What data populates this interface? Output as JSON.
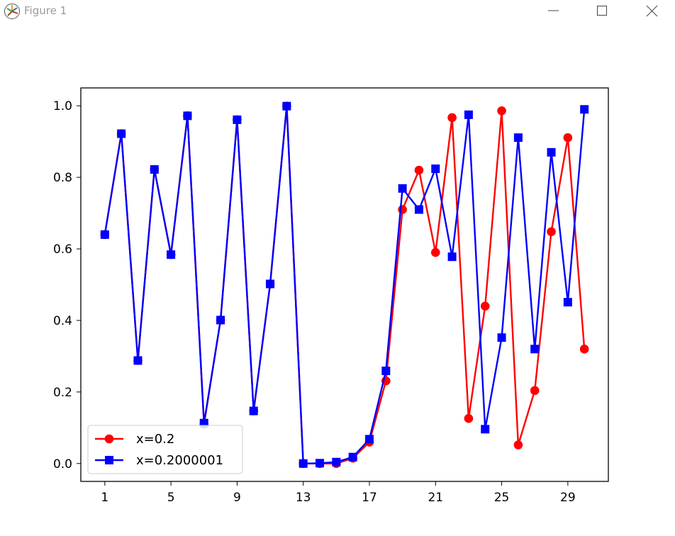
{
  "window": {
    "title": "Figure 1",
    "icons": {
      "app": "matplotlib-icon",
      "minimize": "minimize-icon",
      "maximize": "maximize-icon",
      "close": "close-icon"
    }
  },
  "chart_data": {
    "type": "line",
    "x": [
      1,
      2,
      3,
      4,
      5,
      6,
      7,
      8,
      9,
      10,
      11,
      12,
      13,
      14,
      15,
      16,
      17,
      18,
      19,
      20,
      21,
      22,
      23,
      24,
      25,
      26,
      27,
      28,
      29,
      30
    ],
    "xticks": [
      1,
      5,
      9,
      13,
      17,
      21,
      25,
      29
    ],
    "xticklabels": [
      "1",
      "5",
      "9",
      "13",
      "17",
      "21",
      "25",
      "29"
    ],
    "yticks": [
      0.0,
      0.2,
      0.4,
      0.6,
      0.8,
      1.0
    ],
    "yticklabels": [
      "0.0",
      "0.2",
      "0.4",
      "0.6",
      "0.8",
      "1.0"
    ],
    "xlim": [
      -0.45,
      31.45
    ],
    "ylim": [
      -0.05,
      1.05
    ],
    "grid": false,
    "legend_position": "lower-left",
    "series": [
      {
        "name": "x=0.2",
        "color": "#ff0000",
        "marker": "circle",
        "values": [
          0.64,
          0.922,
          0.288,
          0.822,
          0.584,
          0.972,
          0.11,
          0.401,
          0.961,
          0.147,
          0.502,
          0.999,
          0.0,
          0.0,
          0.0,
          0.015,
          0.06,
          0.231,
          0.71,
          0.82,
          0.59,
          0.967,
          0.126,
          0.44,
          0.986,
          0.052,
          0.204,
          0.648,
          0.911,
          0.32
        ]
      },
      {
        "name": "x=0.2000001",
        "color": "#0000ff",
        "marker": "square",
        "values": [
          0.64,
          0.922,
          0.288,
          0.822,
          0.584,
          0.972,
          0.113,
          0.401,
          0.961,
          0.147,
          0.502,
          0.999,
          0.0,
          0.001,
          0.004,
          0.018,
          0.068,
          0.259,
          0.769,
          0.71,
          0.824,
          0.578,
          0.975,
          0.096,
          0.352,
          0.911,
          0.32,
          0.87,
          0.451,
          0.99
        ]
      }
    ]
  }
}
